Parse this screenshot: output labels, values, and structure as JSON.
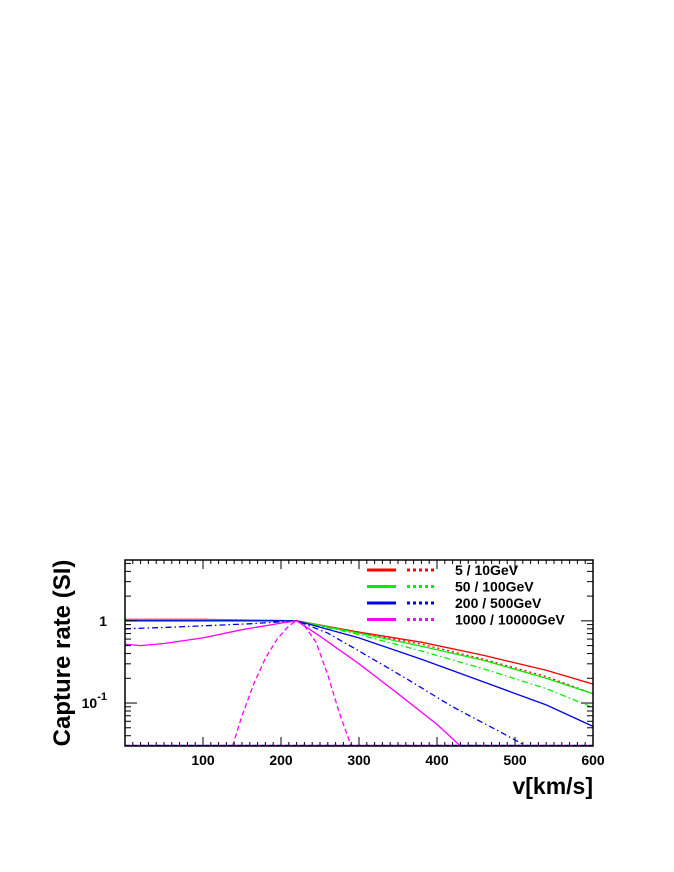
{
  "chart_data": {
    "type": "line",
    "title": "",
    "xlabel": "v[km/s]",
    "ylabel": "Capture rate (SI)",
    "x_scale": "linear",
    "y_scale": "log",
    "xlim": [
      0,
      600
    ],
    "ylim": [
      0.03,
      5.5
    ],
    "x_ticks": [
      100,
      200,
      300,
      400,
      500,
      600
    ],
    "x_tick_labels": [
      "100",
      "200",
      "300",
      "400",
      "500",
      "600"
    ],
    "y_ticks": [
      {
        "value": 1,
        "base": "1",
        "exp": ""
      },
      {
        "value": 0.1,
        "base": "10",
        "exp": "-1"
      }
    ],
    "grid": false,
    "legend_position": "top-right",
    "legend": [
      {
        "label": "5 / 10GeV",
        "color": "#ff0000"
      },
      {
        "label": "50 / 100GeV",
        "color": "#00ee00"
      },
      {
        "label": "200 / 500GeV",
        "color": "#0000ee"
      },
      {
        "label": "1000 / 10000GeV",
        "color": "#ff00ff"
      }
    ],
    "series": [
      {
        "mass": "5 GeV",
        "color": "#ff0000",
        "style": "solid",
        "x": [
          0,
          100,
          220,
          300,
          380,
          460,
          540,
          600
        ],
        "y": [
          1.04,
          1.04,
          1.0,
          0.73,
          0.55,
          0.38,
          0.25,
          0.17
        ]
      },
      {
        "mass": "10 GeV",
        "color": "#ff0000",
        "style": "dotted",
        "x": [
          0,
          100,
          220,
          300,
          380,
          460,
          540,
          600
        ],
        "y": [
          1.04,
          1.04,
          1.0,
          0.72,
          0.52,
          0.34,
          0.21,
          0.13
        ]
      },
      {
        "mass": "50 GeV",
        "color": "#00ee00",
        "style": "solid",
        "x": [
          0,
          100,
          220,
          300,
          380,
          460,
          540,
          600
        ],
        "y": [
          1.03,
          1.03,
          1.0,
          0.71,
          0.49,
          0.33,
          0.2,
          0.13
        ]
      },
      {
        "mass": "100 GeV",
        "color": "#00ee00",
        "style": "dashdot",
        "x": [
          0,
          100,
          220,
          300,
          380,
          460,
          540,
          600
        ],
        "y": [
          1.02,
          1.02,
          1.0,
          0.68,
          0.43,
          0.26,
          0.15,
          0.088
        ]
      },
      {
        "mass": "200 GeV",
        "color": "#0000ee",
        "style": "solid",
        "x": [
          0,
          100,
          220,
          300,
          380,
          460,
          540,
          600
        ],
        "y": [
          1.0,
          1.0,
          1.0,
          0.62,
          0.34,
          0.18,
          0.095,
          0.052
        ]
      },
      {
        "mass": "500 GeV",
        "color": "#0000ee",
        "style": "dashdot",
        "x": [
          0,
          50,
          100,
          160,
          220,
          260,
          300,
          360,
          420,
          480,
          520
        ],
        "y": [
          0.8,
          0.83,
          0.87,
          0.92,
          1.0,
          0.71,
          0.43,
          0.2,
          0.09,
          0.045,
          0.028
        ]
      },
      {
        "mass": "1000 GeV",
        "color": "#ff00ff",
        "style": "solid",
        "x": [
          0,
          20,
          50,
          100,
          150,
          200,
          220,
          250,
          300,
          350,
          400,
          430
        ],
        "y": [
          0.52,
          0.5,
          0.53,
          0.62,
          0.78,
          0.94,
          1.0,
          0.65,
          0.3,
          0.13,
          0.055,
          0.03
        ]
      },
      {
        "mass": "10000 GeV",
        "color": "#ff00ff",
        "style": "dashed",
        "x": [
          138,
          150,
          165,
          180,
          195,
          210,
          220,
          230,
          245,
          260,
          275,
          290
        ],
        "y": [
          0.03,
          0.07,
          0.17,
          0.35,
          0.6,
          0.87,
          1.0,
          0.87,
          0.55,
          0.22,
          0.075,
          0.03
        ]
      }
    ]
  }
}
